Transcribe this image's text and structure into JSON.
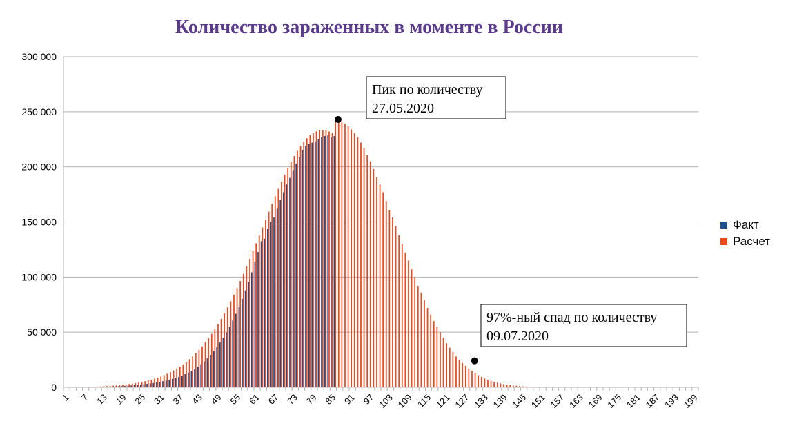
{
  "chart_data": {
    "type": "bar",
    "title": "Количество зараженных в моменте в России",
    "xlabel": "",
    "ylabel": "",
    "x_range": [
      1,
      200
    ],
    "x_tick_labels": [
      "1",
      "7",
      "13",
      "19",
      "25",
      "31",
      "37",
      "43",
      "49",
      "55",
      "61",
      "67",
      "73",
      "79",
      "85",
      "91",
      "97",
      "103",
      "109",
      "115",
      "121",
      "127",
      "133",
      "139",
      "145",
      "151",
      "157",
      "163",
      "169",
      "175",
      "181",
      "187",
      "193",
      "199"
    ],
    "ylim": [
      0,
      300000
    ],
    "y_tick_labels": [
      "0",
      "50 000",
      "100 000",
      "150 000",
      "200 000",
      "250 000",
      "300 000"
    ],
    "grid": true,
    "legend_position": "right",
    "series": [
      {
        "name": "Факт",
        "color": "#1f4e8c",
        "x_start": 1,
        "values": [
          0,
          0,
          0,
          0,
          0,
          0,
          0,
          0,
          0,
          0,
          0,
          0,
          500,
          600,
          700,
          800,
          900,
          1000,
          1100,
          1300,
          1500,
          1700,
          1900,
          2200,
          2500,
          2800,
          3100,
          3500,
          3900,
          4400,
          4900,
          5500,
          6100,
          6800,
          7600,
          8500,
          9500,
          10600,
          11900,
          13300,
          14900,
          16700,
          18700,
          20900,
          23400,
          26200,
          29400,
          32800,
          36500,
          40600,
          45000,
          49800,
          55000,
          60600,
          66700,
          73300,
          80300,
          87800,
          95800,
          104300,
          113300,
          122700,
          132500,
          134800,
          144000,
          150000,
          154000,
          162000,
          170000,
          177000,
          184000,
          190000,
          197000,
          203000,
          209000,
          215000,
          219000,
          221000,
          222000,
          223000,
          225000,
          227000,
          228000,
          228500,
          227000,
          228000
        ]
      },
      {
        "name": "Расчет",
        "color": "#e8491d",
        "x_start": 1,
        "values": [
          150,
          180,
          210,
          250,
          290,
          340,
          400,
          460,
          540,
          630,
          730,
          850,
          980,
          1130,
          1300,
          1500,
          1720,
          1970,
          2250,
          2570,
          2930,
          3330,
          3780,
          4280,
          4840,
          5470,
          6160,
          6940,
          7800,
          8760,
          9810,
          10980,
          12270,
          13680,
          15230,
          16930,
          18790,
          20820,
          23030,
          25430,
          28030,
          30850,
          33890,
          37160,
          40670,
          44440,
          48460,
          52740,
          57290,
          62110,
          67190,
          72540,
          78140,
          83990,
          90080,
          96390,
          102910,
          109610,
          116470,
          123460,
          130560,
          137730,
          144930,
          152130,
          159290,
          166370,
          173310,
          180080,
          186640,
          192930,
          198910,
          204540,
          209770,
          214560,
          218870,
          222670,
          225930,
          228620,
          230720,
          232220,
          233100,
          233360,
          233000,
          232030,
          230460,
          243000,
          241000,
          241000,
          239000,
          237000,
          234000,
          231000,
          227000,
          222000,
          217000,
          211000,
          205000,
          198000,
          191000,
          184000,
          177000,
          169000,
          161000,
          154000,
          146000,
          138000,
          130000,
          122000,
          115000,
          107000,
          100000,
          92000,
          86000,
          79000,
          72000,
          66000,
          60000,
          55000,
          50000,
          45000,
          40000,
          36000,
          32000,
          28000,
          25000,
          22000,
          19500,
          17000,
          15000,
          13000,
          11000,
          9500,
          8000,
          6900,
          5900,
          5000,
          4200,
          3500,
          2900,
          2400,
          2000,
          1650,
          1350,
          1100,
          900,
          730,
          590,
          470,
          380,
          300,
          240,
          190,
          150,
          120,
          90,
          70,
          55,
          40,
          30,
          22,
          16,
          12,
          8,
          6,
          4,
          3,
          2,
          1,
          1,
          1,
          0,
          0,
          0,
          0,
          0,
          0,
          0,
          0,
          0,
          0,
          0,
          0,
          0,
          0,
          0,
          0,
          0,
          0,
          0,
          0,
          0,
          0,
          0,
          0,
          0,
          0,
          0,
          0,
          0,
          0,
          0,
          0,
          0,
          0,
          0,
          0
        ]
      }
    ],
    "annotations": [
      {
        "line1": "Пик по количеству",
        "line2": "27.05.2020",
        "point_x": 87,
        "point_y": 243000
      },
      {
        "line1": "97%-ный спад по количеству",
        "line2": "09.07.2020",
        "point_x": 130,
        "point_y": 24000
      }
    ],
    "colors": {
      "title": "#5b3a8c",
      "grid": "#b3b3b3",
      "axis": "#b3b3b3"
    }
  }
}
